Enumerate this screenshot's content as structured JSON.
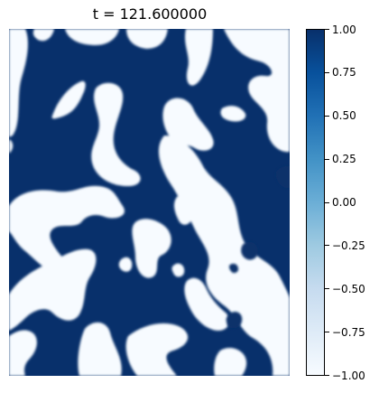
{
  "chart_data": {
    "type": "heatmap",
    "title": "t = 121.600000",
    "xlabel": "",
    "ylabel": "",
    "colormap": "Blues",
    "colors": {
      "low": "#f7fbff",
      "high": "#08306b"
    },
    "value_range": [
      -1.0,
      1.0
    ],
    "values_present": [
      -1.0,
      1.0
    ],
    "colorbar": {
      "ticks": [
        1.0,
        0.75,
        0.5,
        0.25,
        0.0,
        -0.25,
        -0.5,
        -0.75,
        -1.0
      ],
      "tick_labels": [
        "1.00",
        "0.75",
        "0.50",
        "0.25",
        "0.00",
        "−0.25",
        "−0.50",
        "−0.75",
        "−1.00"
      ]
    },
    "axes_visible": false
  }
}
